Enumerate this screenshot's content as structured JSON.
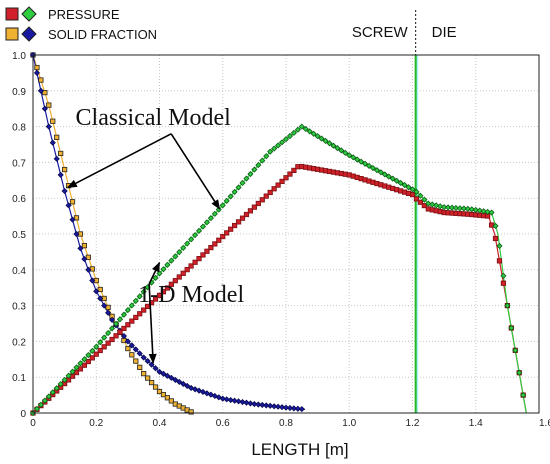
{
  "chart_data": {
    "type": "line",
    "xlabel": "LENGTH [m]",
    "ylabel": "",
    "xlim": [
      0,
      1.6
    ],
    "ylim": [
      0,
      1.0
    ],
    "x_ticks": [
      "0",
      "0.2",
      "0.4",
      "0.6",
      "0.8",
      "1.0",
      "1.2",
      "1.4",
      "1.6"
    ],
    "y_ticks": [
      "0",
      "0.1",
      "0.2",
      "0.3",
      "0.4",
      "0.5",
      "0.6",
      "0.7",
      "0.8",
      "0.9",
      "1.0"
    ],
    "grid": true,
    "legend": {
      "placement": "top-left",
      "entries": [
        {
          "label": "PRESSURE",
          "markers": [
            {
              "shape": "square",
              "color": "#d0202a"
            },
            {
              "shape": "diamond",
              "color": "#2ecc40"
            }
          ]
        },
        {
          "label": "SOLID FRACTION",
          "markers": [
            {
              "shape": "square",
              "color": "#f0b030"
            },
            {
              "shape": "diamond",
              "color": "#1a1aa0"
            }
          ]
        }
      ]
    },
    "regions": [
      {
        "label": "SCREW",
        "x_end": 1.21
      },
      {
        "label": "DIE",
        "x_start": 1.21
      }
    ],
    "boundary_x": 1.21,
    "annotations": [
      {
        "text": "Classical Model",
        "text_at": [
          0.38,
          0.805
        ],
        "arrows_to": [
          [
            0.11,
            0.63
          ],
          [
            0.59,
            0.57
          ]
        ]
      },
      {
        "text": "1-D Model",
        "text_at": [
          0.5,
          0.31
        ],
        "arrows_to": [
          [
            0.4,
            0.42
          ],
          [
            0.38,
            0.14
          ]
        ]
      }
    ],
    "series": [
      {
        "model": "Classical",
        "color": "#d0202a",
        "edge": "#7a1010",
        "marker": "square",
        "points": [
          [
            0,
            0
          ],
          [
            0.84,
            0.69
          ],
          [
            1.0,
            0.665
          ],
          [
            1.2,
            0.61
          ],
          [
            1.21,
            0.6
          ],
          [
            1.25,
            0.57
          ],
          [
            1.3,
            0.56
          ],
          [
            1.38,
            0.555
          ],
          [
            1.44,
            0.55
          ],
          [
            1.46,
            0.5
          ],
          [
            1.5,
            0.3
          ],
          [
            1.56,
            0.0
          ]
        ]
      },
      {
        "model": "1-D",
        "color": "#2ecc40",
        "edge": "#0b5a14",
        "marker": "diamond",
        "points": [
          [
            0,
            0
          ],
          [
            0.2,
            0.185
          ],
          [
            0.4,
            0.39
          ],
          [
            0.6,
            0.58
          ],
          [
            0.75,
            0.73
          ],
          [
            0.85,
            0.8
          ],
          [
            1.0,
            0.72
          ],
          [
            1.21,
            0.62
          ],
          [
            1.25,
            0.585
          ],
          [
            1.3,
            0.575
          ],
          [
            1.38,
            0.57
          ],
          [
            1.45,
            0.56
          ],
          [
            1.47,
            0.5
          ],
          [
            1.5,
            0.3
          ],
          [
            1.56,
            0.0
          ]
        ]
      },
      {
        "model": "Classical",
        "color": "#f0b030",
        "edge": "#222222",
        "marker": "square",
        "points": [
          [
            0,
            1.0
          ],
          [
            0.05,
            0.86
          ],
          [
            0.1,
            0.68
          ],
          [
            0.15,
            0.5
          ],
          [
            0.2,
            0.37
          ],
          [
            0.25,
            0.27
          ],
          [
            0.3,
            0.18
          ],
          [
            0.35,
            0.11
          ],
          [
            0.4,
            0.06
          ],
          [
            0.45,
            0.025
          ],
          [
            0.5,
            0.003
          ]
        ]
      },
      {
        "model": "1-D",
        "color": "#1a1aa0",
        "edge": "#0a0a50",
        "marker": "diamond",
        "points": [
          [
            0,
            1.0
          ],
          [
            0.05,
            0.8
          ],
          [
            0.1,
            0.62
          ],
          [
            0.15,
            0.46
          ],
          [
            0.2,
            0.34
          ],
          [
            0.25,
            0.26
          ],
          [
            0.3,
            0.2
          ],
          [
            0.35,
            0.155
          ],
          [
            0.4,
            0.115
          ],
          [
            0.5,
            0.07
          ],
          [
            0.6,
            0.04
          ],
          [
            0.7,
            0.025
          ],
          [
            0.8,
            0.015
          ],
          [
            0.86,
            0.01
          ]
        ]
      }
    ]
  }
}
